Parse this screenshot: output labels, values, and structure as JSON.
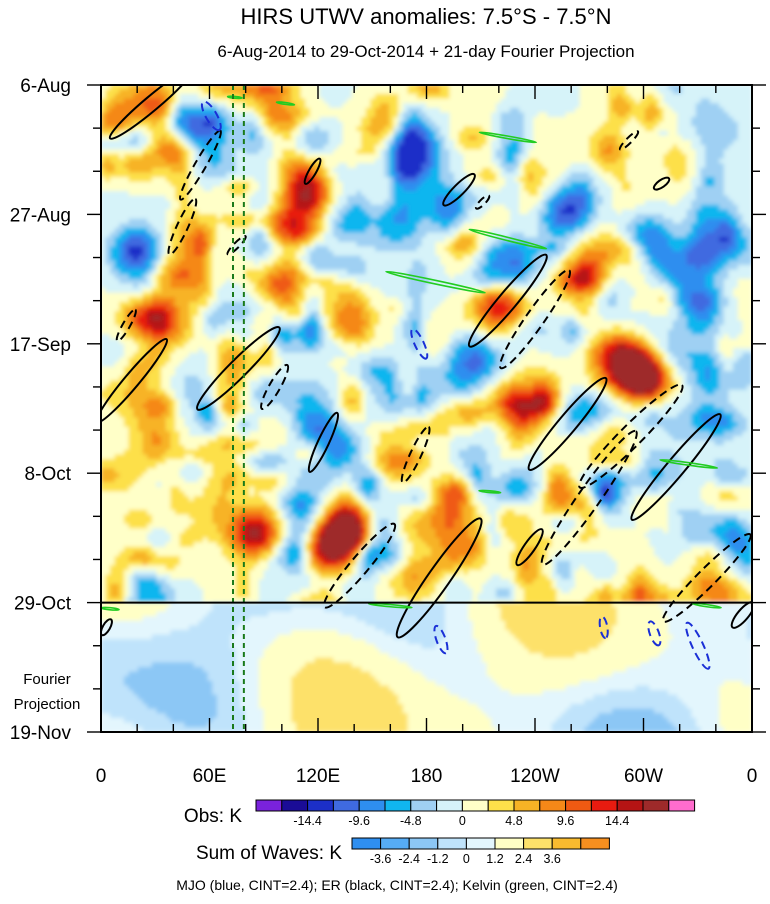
{
  "chart_data": {
    "type": "heatmap",
    "title": "HIRS UTWV anomalies: 7.5°S - 7.5°N",
    "subtitle": "6-Aug-2014 to 29-Oct-2014 + 21-day Fourier Projection",
    "y_ticks": [
      "6-Aug",
      "27-Aug",
      "17-Sep",
      "8-Oct",
      "29-Oct",
      "19-Nov"
    ],
    "x_ticks": [
      "0",
      "60E",
      "120E",
      "180",
      "120W",
      "60W",
      "0"
    ],
    "x_range_deg": [
      0,
      360
    ],
    "time_range_days": [
      0,
      105
    ],
    "observed_end_day": 84,
    "projection_label_line1": "Fourier",
    "projection_label_line2": "Projection",
    "reference_longitudes_deg": [
      73,
      79
    ],
    "obs_colorbar": {
      "label": "Obs: K",
      "colors": [
        "#7a22dc",
        "#1a0c96",
        "#1c2fc8",
        "#3f6ae0",
        "#2e8eef",
        "#10b6ef",
        "#9fd0f3",
        "#d6f3f9",
        "#ffffc8",
        "#fde04a",
        "#f7b325",
        "#f58818",
        "#ef5a12",
        "#e81b10",
        "#b51414",
        "#9e2a2a",
        "#ff6ccd"
      ],
      "tick_labels": [
        "-14.4",
        "-9.6",
        "-4.8",
        "0",
        "4.8",
        "9.6",
        "14.4"
      ]
    },
    "waves_colorbar": {
      "label": "Sum of Waves: K",
      "colors": [
        "#2f8ff0",
        "#56acf5",
        "#8cc7f5",
        "#bfe3fb",
        "#e3f6fd",
        "#ffffc6",
        "#fde16a",
        "#f9bb2f",
        "#f68f1f"
      ],
      "tick_labels": [
        "-3.6",
        "-2.4",
        "-1.2",
        "0",
        "1.2",
        "2.4",
        "3.6"
      ]
    },
    "footer": "MJO (blue, CINT=2.4); ER (black, CINT=2.4); Kelvin (green, CINT=2.4)",
    "mjo_color": "#1a2fd6",
    "er_color": "#000000",
    "kelvin_color": "#22cc22",
    "er_contours": [
      {
        "lon": 28,
        "day": 3,
        "len": 30,
        "w": 4,
        "ang": -40,
        "sign": 1
      },
      {
        "lon": 55,
        "day": 13,
        "len": 22,
        "w": 3,
        "ang": -60,
        "sign": -1
      },
      {
        "lon": 117,
        "day": 14,
        "len": 8,
        "w": 2,
        "ang": -60,
        "sign": 1
      },
      {
        "lon": 45,
        "day": 23,
        "len": 17,
        "w": 3,
        "ang": -65,
        "sign": -1
      },
      {
        "lon": 75,
        "day": 26,
        "len": 7,
        "w": 1.5,
        "ang": -45,
        "sign": -1
      },
      {
        "lon": 14,
        "day": 39,
        "len": 10,
        "w": 2,
        "ang": -60,
        "sign": -1
      },
      {
        "lon": 17,
        "day": 48,
        "len": 30,
        "w": 4,
        "ang": -50,
        "sign": 1
      },
      {
        "lon": 76,
        "day": 46,
        "len": 32,
        "w": 5,
        "ang": -45,
        "sign": 1
      },
      {
        "lon": 96,
        "day": 49,
        "len": 14,
        "w": 3,
        "ang": -60,
        "sign": -1
      },
      {
        "lon": 123,
        "day": 58,
        "len": 18,
        "w": 3,
        "ang": -65,
        "sign": 1
      },
      {
        "lon": 174,
        "day": 60,
        "len": 17,
        "w": 3,
        "ang": -65,
        "sign": -1
      },
      {
        "lon": 198,
        "day": 17,
        "len": 12,
        "w": 3,
        "ang": -45,
        "sign": 1
      },
      {
        "lon": 211,
        "day": 19,
        "len": 5,
        "w": 1.5,
        "ang": -45,
        "sign": -1
      },
      {
        "lon": 225,
        "day": 35,
        "len": 33,
        "w": 5,
        "ang": -50,
        "sign": 1
      },
      {
        "lon": 240,
        "day": 38,
        "len": 33,
        "w": 5,
        "ang": -55,
        "sign": -1
      },
      {
        "lon": 258,
        "day": 55,
        "len": 33,
        "w": 5,
        "ang": -50,
        "sign": 1
      },
      {
        "lon": 293,
        "day": 57,
        "len": 40,
        "w": 6,
        "ang": -45,
        "sign": -1
      },
      {
        "lon": 318,
        "day": 62,
        "len": 38,
        "w": 5,
        "ang": -50,
        "sign": 1
      },
      {
        "lon": 270,
        "day": 67,
        "len": 45,
        "w": 6,
        "ang": -55,
        "sign": -1
      },
      {
        "lon": 187,
        "day": 80,
        "len": 40,
        "w": 6,
        "ang": -55,
        "sign": 1
      },
      {
        "lon": 143,
        "day": 78,
        "len": 30,
        "w": 5,
        "ang": -50,
        "sign": -1
      },
      {
        "lon": 237,
        "day": 75,
        "len": 12,
        "w": 3,
        "ang": -55,
        "sign": 1
      },
      {
        "lon": 335,
        "day": 80,
        "len": 34,
        "w": 5,
        "ang": -45,
        "sign": -1
      },
      {
        "lon": 355,
        "day": 86,
        "len": 9,
        "w": 3,
        "ang": -50,
        "sign": 1
      },
      {
        "lon": 292,
        "day": 9,
        "len": 7,
        "w": 1.5,
        "ang": -45,
        "sign": -1
      },
      {
        "lon": 310,
        "day": 16,
        "len": 5,
        "w": 2,
        "ang": -35,
        "sign": 1
      },
      {
        "lon": 3,
        "day": 88,
        "len": 5,
        "w": 2,
        "ang": -60,
        "sign": 1
      }
    ],
    "mjo_contours": [
      {
        "lon": 61,
        "day": 5,
        "len": 9,
        "w": 3,
        "ang": 60,
        "sign": -1
      },
      {
        "lon": 176,
        "day": 42,
        "len": 9,
        "w": 2.5,
        "ang": 65,
        "sign": -1
      },
      {
        "lon": 188,
        "day": 90,
        "len": 8,
        "w": 2.5,
        "ang": 70,
        "sign": -1
      },
      {
        "lon": 278,
        "day": 88,
        "len": 6,
        "w": 2,
        "ang": 80,
        "sign": -1
      },
      {
        "lon": 306,
        "day": 89,
        "len": 7,
        "w": 2.5,
        "ang": 70,
        "sign": -1
      },
      {
        "lon": 330,
        "day": 91,
        "len": 14,
        "w": 3,
        "ang": 65,
        "sign": -1
      }
    ],
    "kelvin_contours": [
      {
        "lon": 225,
        "day": 8.5,
        "len": 16,
        "w": 0.7,
        "ang": 10,
        "sign": 1
      },
      {
        "lon": 225,
        "day": 25,
        "len": 22,
        "w": 0.9,
        "ang": 14,
        "sign": 1
      },
      {
        "lon": 185,
        "day": 32,
        "len": 28,
        "w": 1,
        "ang": 12,
        "sign": 1
      },
      {
        "lon": 325,
        "day": 61.5,
        "len": 16,
        "w": 0.7,
        "ang": 8,
        "sign": 1
      },
      {
        "lon": 74,
        "day": 2,
        "len": 4,
        "w": 0.5,
        "ang": 5,
        "sign": 1
      },
      {
        "lon": 102,
        "day": 3,
        "len": 5,
        "w": 0.5,
        "ang": 8,
        "sign": 1
      },
      {
        "lon": 160,
        "day": 84.5,
        "len": 12,
        "w": 0.6,
        "ang": 5,
        "sign": 1
      },
      {
        "lon": 335,
        "day": 84.5,
        "len": 8,
        "w": 0.6,
        "ang": 8,
        "sign": 1
      },
      {
        "lon": 5,
        "day": 85,
        "len": 5,
        "w": 0.6,
        "ang": 5,
        "sign": 1
      },
      {
        "lon": 215,
        "day": 66,
        "len": 6,
        "w": 0.5,
        "ang": 5,
        "sign": 1
      }
    ]
  }
}
